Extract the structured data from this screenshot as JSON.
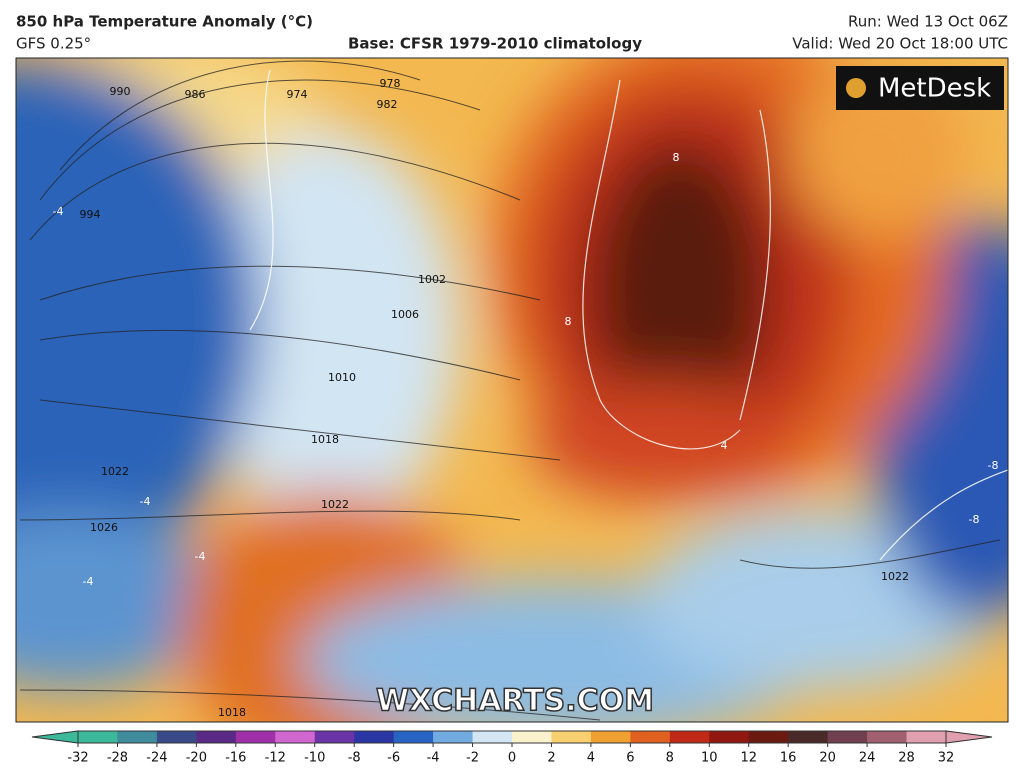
{
  "header": {
    "title": "850 hPa Temperature Anomaly (°C)",
    "model": "GFS 0.25°",
    "base": "Base: CFSR 1979-2010 climatology",
    "run": "Run: Wed 13 Oct 06Z",
    "valid": "Valid: Wed 20 Oct 18:00 UTC"
  },
  "map": {
    "logo": "MetDesk",
    "watermark": "WXCHARTS.COM",
    "isobar_labels": [
      "990",
      "986",
      "974",
      "978",
      "982",
      "994",
      "1002",
      "1006",
      "1010",
      "1018",
      "1022",
      "1026",
      "1022",
      "1018",
      "1022"
    ],
    "anomaly_labels": [
      "-4",
      "8",
      "8",
      "-4",
      "-4",
      "4",
      "-8",
      "-8",
      "-4"
    ]
  },
  "colorbar": {
    "ticks": [
      -32,
      -28,
      -24,
      -20,
      -16,
      -12,
      -10,
      -8,
      -6,
      -4,
      -2,
      0,
      2,
      4,
      6,
      8,
      10,
      12,
      16,
      20,
      24,
      28,
      32
    ],
    "colors": [
      "#3cb89a",
      "#3f8c9c",
      "#3a4a88",
      "#5a2a86",
      "#a030a8",
      "#d066d0",
      "#6a34a8",
      "#2a36a4",
      "#2864c4",
      "#72aae2",
      "#d4e6f4",
      "#faf2cc",
      "#f8d070",
      "#f0a030",
      "#e06020",
      "#c02818",
      "#901810",
      "#6a1a10",
      "#4a2a28",
      "#704050",
      "#a06070",
      "#e0a0b0"
    ]
  }
}
